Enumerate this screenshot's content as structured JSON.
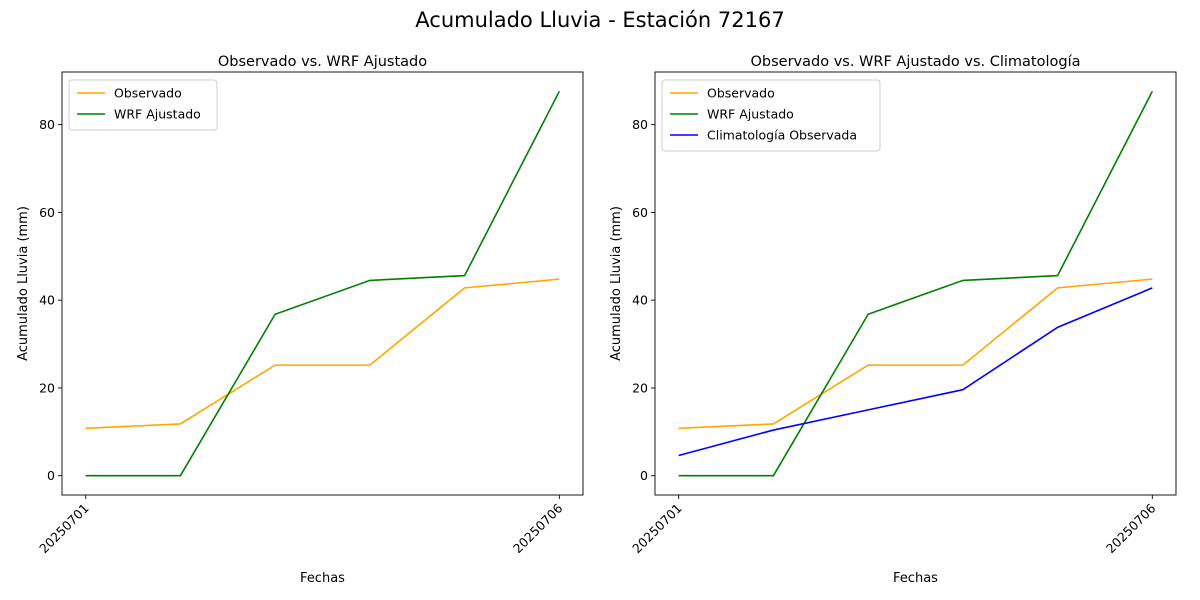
{
  "suptitle": "Acumulado Lluvia - Estación 72167",
  "chart_data": [
    {
      "type": "line",
      "title": "Observado vs. WRF Ajustado",
      "xlabel": "Fechas",
      "ylabel": "Acumulado Lluvia (mm)",
      "x": [
        "20250701",
        "20250702",
        "20250703",
        "20250704",
        "20250705",
        "20250706"
      ],
      "xtick_labels": [
        "20250701",
        "20250706"
      ],
      "yticks": [
        0,
        20,
        40,
        60,
        80
      ],
      "ylim": [
        -4.4,
        92
      ],
      "grid": false,
      "legend_position": "upper-left",
      "series": [
        {
          "name": "Observado",
          "color": "#ffa500",
          "values": [
            10.8,
            11.8,
            25.2,
            25.2,
            42.8,
            44.8
          ]
        },
        {
          "name": "WRF Ajustado",
          "color": "#008000",
          "values": [
            0.0,
            0.0,
            36.8,
            44.5,
            45.6,
            87.6
          ]
        }
      ]
    },
    {
      "type": "line",
      "title": "Observado vs. WRF Ajustado vs. Climatología",
      "xlabel": "Fechas",
      "ylabel": "Acumulado Lluvia (mm)",
      "x": [
        "20250701",
        "20250702",
        "20250703",
        "20250704",
        "20250705",
        "20250706"
      ],
      "xtick_labels": [
        "20250701",
        "20250706"
      ],
      "yticks": [
        0,
        20,
        40,
        60,
        80
      ],
      "ylim": [
        -4.4,
        92
      ],
      "grid": false,
      "legend_position": "upper-left",
      "series": [
        {
          "name": "Observado",
          "color": "#ffa500",
          "values": [
            10.8,
            11.8,
            25.2,
            25.2,
            42.8,
            44.8
          ]
        },
        {
          "name": "WRF Ajustado",
          "color": "#008000",
          "values": [
            0.0,
            0.0,
            36.8,
            44.5,
            45.6,
            87.6
          ]
        },
        {
          "name": "Climatología Observada",
          "color": "#0000ff",
          "values": [
            4.6,
            10.4,
            15.0,
            19.6,
            33.8,
            42.8
          ]
        }
      ]
    }
  ]
}
